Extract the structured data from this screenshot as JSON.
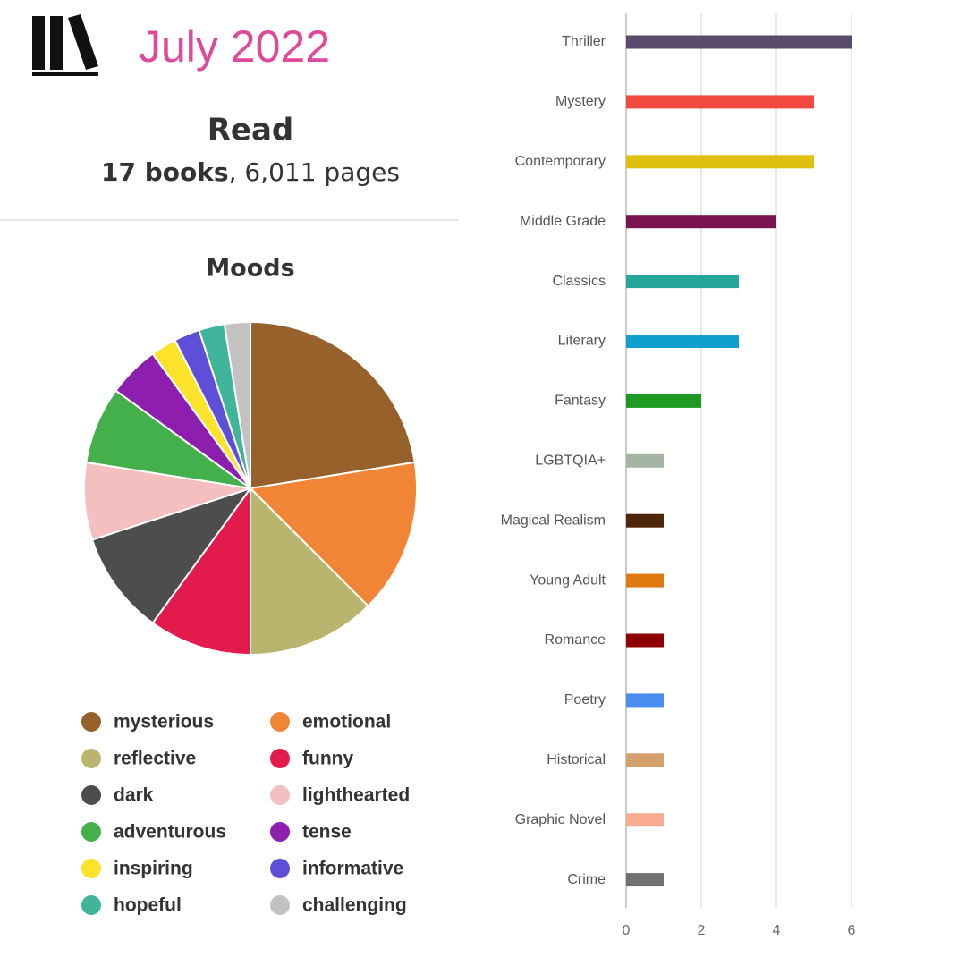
{
  "header": {
    "title": "July 2022",
    "heading": "Read",
    "books": "17 books",
    "pages": ", 6,011 pages"
  },
  "chart_data": [
    {
      "type": "pie",
      "title": "Moods",
      "categories": [
        "mysterious",
        "emotional",
        "reflective",
        "funny",
        "dark",
        "lighthearted",
        "adventurous",
        "tense",
        "inspiring",
        "informative",
        "hopeful",
        "challenging"
      ],
      "values": [
        22.5,
        15,
        12.5,
        10,
        10,
        7.5,
        7.5,
        5,
        2.5,
        2.5,
        2.5,
        2.5
      ],
      "colors": [
        "#96612a",
        "#f28535",
        "#b9b56e",
        "#e31b4c",
        "#4d4d4d",
        "#f5bfbf",
        "#43b04b",
        "#8e1eae",
        "#fde22a",
        "#5e4ed8",
        "#40b59b",
        "#c2c2c2"
      ]
    },
    {
      "type": "bar",
      "orientation": "horizontal",
      "categories": [
        "Thriller",
        "Mystery",
        "Contemporary",
        "Middle Grade",
        "Classics",
        "Literary",
        "Fantasy",
        "LGBTQIA+",
        "Magical Realism",
        "Young Adult",
        "Romance",
        "Poetry",
        "Historical",
        "Graphic Novel",
        "Crime"
      ],
      "values": [
        6,
        5,
        5,
        4,
        3,
        3,
        2,
        1,
        1,
        1,
        1,
        1,
        1,
        1,
        1
      ],
      "colors": [
        "#5a4a6b",
        "#f24a3f",
        "#e0c00e",
        "#7a1450",
        "#26a69a",
        "#119fd0",
        "#1e9a22",
        "#a5b5a3",
        "#4f2609",
        "#e07a10",
        "#8c0000",
        "#4a8df0",
        "#d4a06c",
        "#f9ab90",
        "#707070"
      ],
      "xlim": [
        0,
        6
      ],
      "xticks": [
        0,
        2,
        4,
        6
      ],
      "grid": true
    }
  ]
}
